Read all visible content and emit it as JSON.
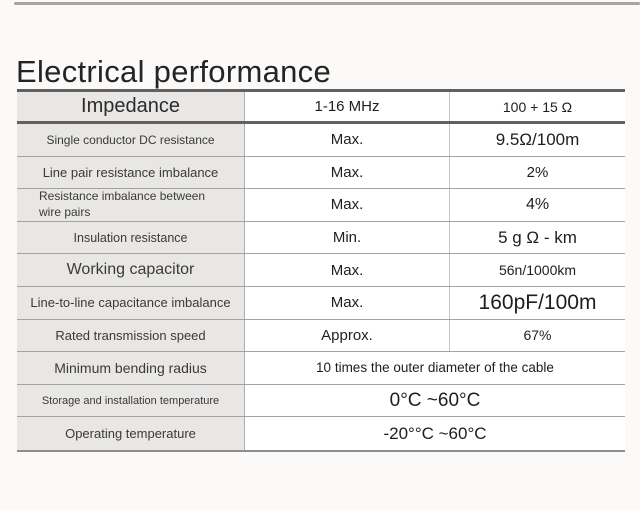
{
  "page": {
    "title": "Electrical performance"
  },
  "table": {
    "header": {
      "label": "Impedance",
      "condition": "1-16 MHz",
      "value": "100 + 15 Ω"
    },
    "rows": [
      {
        "label": "Single conductor DC resistance",
        "condition": "Max.",
        "value": "9.5Ω/100m"
      },
      {
        "label": "Line pair resistance imbalance",
        "condition": "Max.",
        "value": "2%"
      },
      {
        "label": "Resistance imbalance between wire pairs",
        "condition": "Max.",
        "value": "4%"
      },
      {
        "label": "Insulation resistance",
        "condition": "Min.",
        "value": "5 g Ω - km"
      },
      {
        "label": "Working capacitor",
        "condition": "Max.",
        "value": "56n/1000km"
      },
      {
        "label": "Line-to-line capacitance imbalance",
        "condition": "Max.",
        "value": "160pF/100m"
      },
      {
        "label": "Rated transmission speed",
        "condition": "Approx.",
        "value": "67%"
      }
    ],
    "merged_rows": [
      {
        "label": "Minimum bending radius",
        "value": "10 times the outer diameter of the cable"
      },
      {
        "label": "Storage and installation temperature",
        "value": "0°C ~60°C"
      },
      {
        "label": "Operating temperature",
        "value": "-20°°C ~60°C"
      }
    ]
  },
  "colors": {
    "label_cell_bg": "#e8e7e5",
    "value_cell_bg": "#ffffff",
    "border_dark": "#616161",
    "border_light": "#a2a2a2",
    "page_bg": "#fbfaf9",
    "title_color": "#242424"
  }
}
